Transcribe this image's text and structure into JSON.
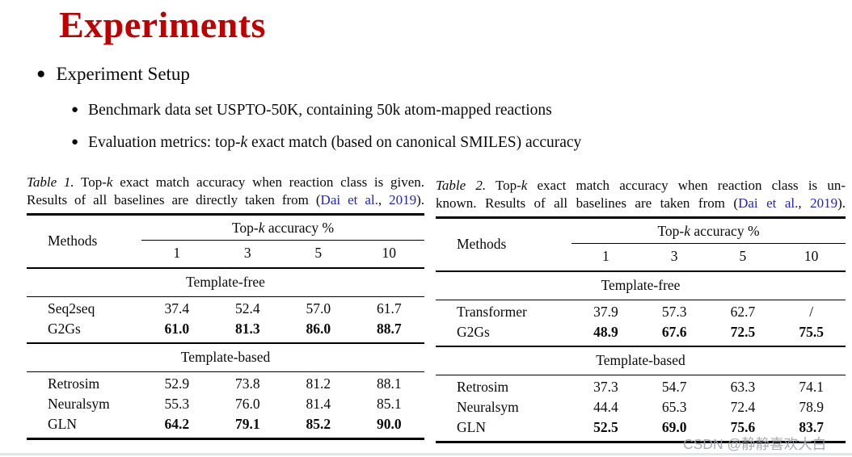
{
  "slide": {
    "title": "Experiments",
    "setup_heading": "Experiment Setup",
    "sub_bullets": [
      {
        "segments": [
          {
            "t": "Benchmark data set USPTO-50K, containing 50k atom-mapped reactions"
          }
        ]
      },
      {
        "segments": [
          {
            "t": "Evaluation metrics: top-"
          },
          {
            "k": "k"
          },
          {
            "t": " exact match (based on canonical SMILES) accuracy"
          }
        ]
      }
    ]
  },
  "colors": {
    "title_red": "#C00000",
    "citation_blue": "#2222CC",
    "watermark_gray": "#9EA5AE",
    "bottom_strip_blue": "#DCE7F3"
  },
  "tables": [
    {
      "caption_lines": [
        [
          {
            "i": "Table 1."
          },
          {
            "t": " Top-"
          },
          {
            "k": "k"
          },
          {
            "t": " exact match accuracy when reaction class is given."
          }
        ],
        [
          {
            "t": "Results of all baselines are directly taken from ("
          },
          {
            "c": "Dai et al."
          },
          {
            "t": ", "
          },
          {
            "c": "2019"
          },
          {
            "t": ")."
          }
        ]
      ],
      "methods_header": "Methods",
      "topk_header": [
        {
          "t": "Top-"
        },
        {
          "k": "k"
        },
        {
          "t": " accuracy %"
        }
      ],
      "k_values": [
        "1",
        "3",
        "5",
        "10"
      ],
      "sections": [
        {
          "label": "Template-free",
          "rows": [
            {
              "method": "Seq2seq",
              "values": [
                "37.4",
                "52.4",
                "57.0",
                "61.7"
              ],
              "bold": false
            },
            {
              "method": "G2Gs",
              "values": [
                "61.0",
                "81.3",
                "86.0",
                "88.7"
              ],
              "bold": true
            }
          ]
        },
        {
          "label": "Template-based",
          "rows": [
            {
              "method": "Retrosim",
              "values": [
                "52.9",
                "73.8",
                "81.2",
                "88.1"
              ],
              "bold": false
            },
            {
              "method": "Neuralsym",
              "values": [
                "55.3",
                "76.0",
                "81.4",
                "85.1"
              ],
              "bold": false
            },
            {
              "method": "GLN",
              "values": [
                "64.2",
                "79.1",
                "85.2",
                "90.0"
              ],
              "bold": true
            }
          ]
        }
      ]
    },
    {
      "caption_lines": [
        [
          {
            "i": "Table 2."
          },
          {
            "t": " Top-"
          },
          {
            "k": "k"
          },
          {
            "t": " exact match accuracy when reaction class is un-"
          }
        ],
        [
          {
            "t": "known. Results of all baselines are taken from ("
          },
          {
            "c": "Dai et al."
          },
          {
            "t": ", "
          },
          {
            "c": "2019"
          },
          {
            "t": ")."
          }
        ]
      ],
      "methods_header": "Methods",
      "topk_header": [
        {
          "t": "Top-"
        },
        {
          "k": "k"
        },
        {
          "t": " accuracy %"
        }
      ],
      "k_values": [
        "1",
        "3",
        "5",
        "10"
      ],
      "sections": [
        {
          "label": "Template-free",
          "rows": [
            {
              "method": "Transformer",
              "values": [
                "37.9",
                "57.3",
                "62.7",
                "/"
              ],
              "bold": false
            },
            {
              "method": "G2Gs",
              "values": [
                "48.9",
                "67.6",
                "72.5",
                "75.5"
              ],
              "bold": true
            }
          ]
        },
        {
          "label": "Template-based",
          "rows": [
            {
              "method": "Retrosim",
              "values": [
                "37.3",
                "54.7",
                "63.3",
                "74.1"
              ],
              "bold": false
            },
            {
              "method": "Neuralsym",
              "values": [
                "44.4",
                "65.3",
                "72.4",
                "78.9"
              ],
              "bold": false
            },
            {
              "method": "GLN",
              "values": [
                "52.5",
                "69.0",
                "75.6",
                "83.7"
              ],
              "bold": true
            }
          ]
        }
      ]
    }
  ],
  "watermark": "CSDN @静静喜欢大白"
}
